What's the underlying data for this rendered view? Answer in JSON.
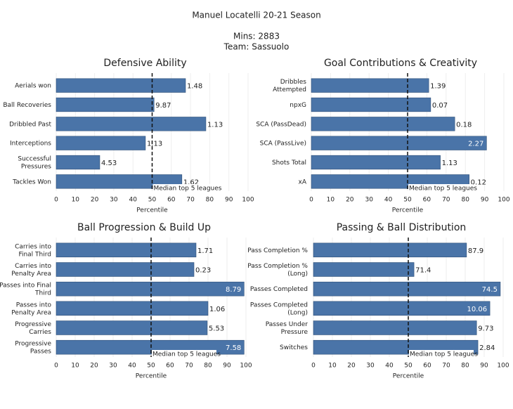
{
  "header": {
    "title": "Manuel Locatelli 20-21 Season",
    "mins": "Mins: 2883",
    "team": "Team: Sassuolo"
  },
  "chart_data": [
    {
      "type": "bar",
      "title": "Defensive Ability",
      "categories": [
        "Aerials won",
        "Ball Recoveries",
        "Dribbled Past",
        "Interceptions",
        "Successful Pressures",
        "Tackles Won"
      ],
      "values": [
        67.4,
        51,
        78,
        46.5,
        22.7,
        65.5
      ],
      "stats": [
        1.48,
        9.87,
        1.13,
        1.13,
        4.53,
        1.62
      ],
      "color": "#4a74a8",
      "xlim": [
        0,
        100
      ],
      "xticks": [
        0,
        10,
        20,
        30,
        40,
        50,
        60,
        70,
        80,
        90,
        100
      ],
      "xlabel": "Percentile",
      "grid": true,
      "reference": {
        "value": 50,
        "label": "Median top 5 leagues"
      }
    },
    {
      "type": "bar",
      "title": "Goal Contributions & Creativity",
      "categories": [
        "Dribbles Attempted",
        "npxG",
        "SCA (PassDead)",
        "SCA (PassLive)",
        "Shots Total",
        "xA"
      ],
      "values": [
        61,
        62,
        74.5,
        91,
        67,
        82
      ],
      "stats": [
        1.39,
        0.07,
        0.18,
        2.27,
        1.13,
        0.12
      ],
      "color": "#4a74a8",
      "xlim": [
        0,
        100
      ],
      "xticks": [
        0,
        10,
        20,
        30,
        40,
        50,
        60,
        70,
        80,
        90,
        100
      ],
      "xlabel": "Percentile",
      "grid": true,
      "reference": {
        "value": 50,
        "label": "Median top 5 leagues"
      }
    },
    {
      "type": "bar",
      "title": "Ball Progression & Build Up",
      "categories": [
        "Carries into Final Third",
        "Carries into Penalty Area",
        "Passes into Final Third",
        "Passes into Penalty Area",
        "Progressive Carries",
        "Progressive Passes"
      ],
      "values": [
        73.7,
        72.6,
        99,
        80,
        79.6,
        99
      ],
      "stats": [
        1.71,
        0.23,
        8.79,
        1.06,
        5.53,
        7.58
      ],
      "color": "#4a74a8",
      "xlim": [
        0,
        100
      ],
      "xticks": [
        0,
        10,
        20,
        30,
        40,
        50,
        60,
        70,
        80,
        90,
        100
      ],
      "xlabel": "Percentile",
      "grid": true,
      "reference": {
        "value": 50,
        "label": "Median top 5 leagues"
      }
    },
    {
      "type": "bar",
      "title": "Passing & Ball Distribution",
      "categories": [
        "Pass Completion %",
        "Pass Completion % (Long)",
        "Passes Completed",
        "Passes Completed (Long)",
        "Passes Under Pressure",
        "Switches"
      ],
      "values": [
        80.7,
        53,
        98.5,
        93,
        86,
        86.7
      ],
      "stats": [
        87.9,
        71.4,
        74.5,
        10.06,
        9.73,
        2.84
      ],
      "color": "#4a74a8",
      "xlim": [
        0,
        100
      ],
      "xticks": [
        0,
        10,
        20,
        30,
        40,
        50,
        60,
        70,
        80,
        90,
        100
      ],
      "xlabel": "Percentile",
      "grid": true,
      "reference": {
        "value": 50,
        "label": "Median top 5 leagues"
      }
    }
  ]
}
